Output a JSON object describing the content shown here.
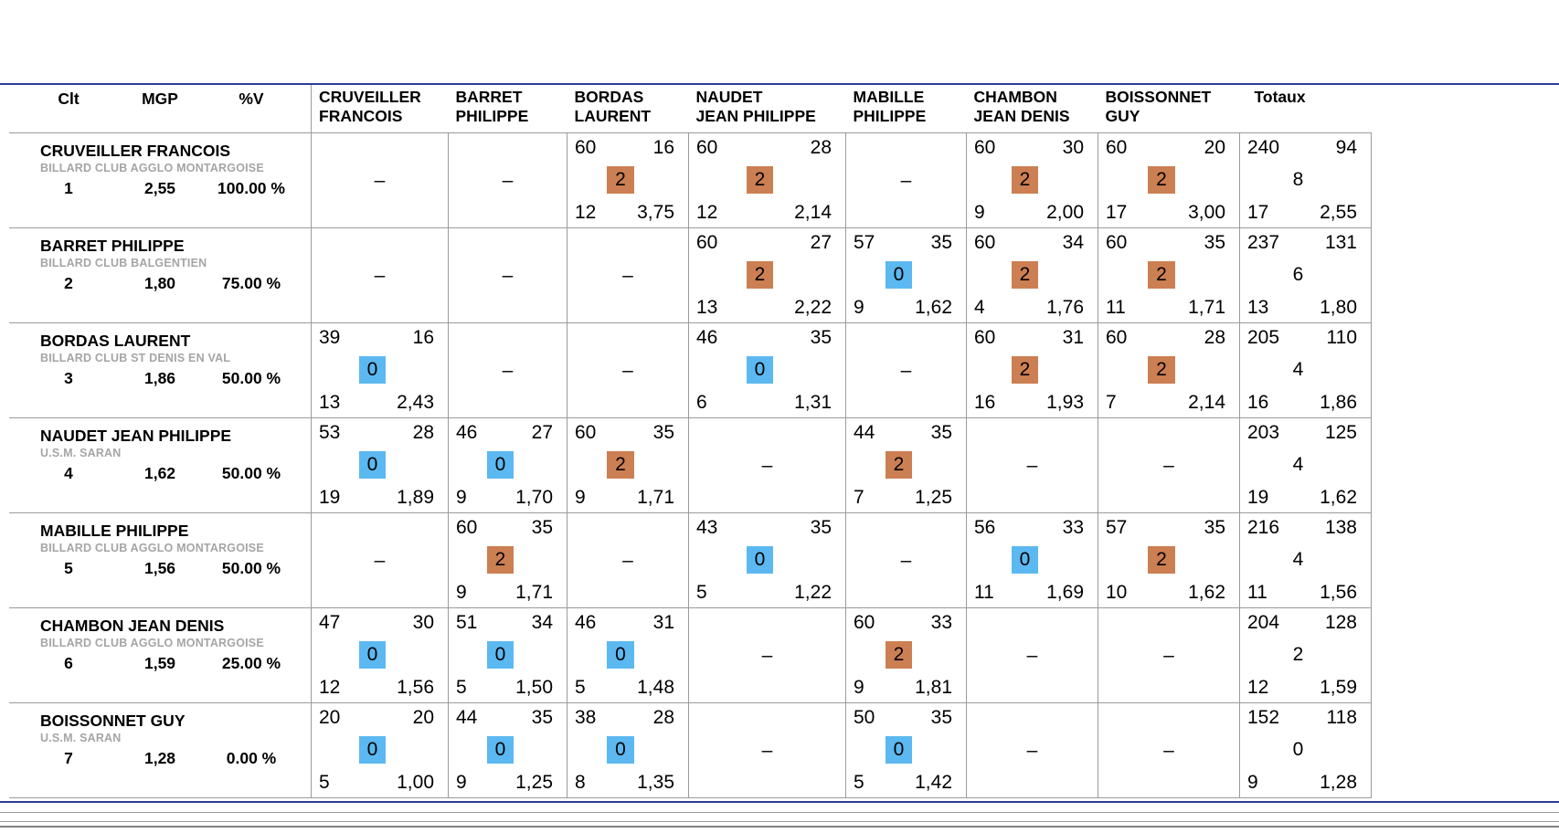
{
  "colors": {
    "accent_line": "#2e3b94",
    "win_badge": "#cc7f52",
    "loss_badge": "#5cb8f0",
    "club_text": "#a5a5a5",
    "grid_line": "#9b9b9b"
  },
  "table": {
    "stat_headers": [
      "Clt",
      "MGP",
      "%V"
    ],
    "totals_header": "Totaux",
    "no_match_symbol": "–",
    "opponents": [
      {
        "line1": "CRUVEILLER",
        "line2": "FRANCOIS"
      },
      {
        "line1": "BARRET",
        "line2": "PHILIPPE"
      },
      {
        "line1": "BORDAS",
        "line2": "LAURENT"
      },
      {
        "line1": "NAUDET",
        "line2": "JEAN PHILIPPE"
      },
      {
        "line1": "MABILLE",
        "line2": "PHILIPPE"
      },
      {
        "line1": "CHAMBON",
        "line2": "JEAN DENIS"
      },
      {
        "line1": "BOISSONNET",
        "line2": "GUY"
      }
    ],
    "rows": [
      {
        "name": "CRUVEILLER FRANCOIS",
        "club": "BILLARD CLUB AGGLO MONTARGOISE",
        "rank": "1",
        "mgp": "2,55",
        "pct_v": "100.00 %",
        "matches": [
          null,
          null,
          {
            "points": "60",
            "serie": "16",
            "match_pts": "2",
            "innings": "12",
            "average": "3,75"
          },
          {
            "points": "60",
            "serie": "28",
            "match_pts": "2",
            "innings": "12",
            "average": "2,14"
          },
          null,
          {
            "points": "60",
            "serie": "30",
            "match_pts": "2",
            "innings": "9",
            "average": "2,00"
          },
          {
            "points": "60",
            "serie": "20",
            "match_pts": "2",
            "innings": "17",
            "average": "3,00"
          }
        ],
        "totals": {
          "points": "240",
          "serie": "94",
          "match_pts": "8",
          "innings": "17",
          "average": "2,55"
        }
      },
      {
        "name": "BARRET PHILIPPE",
        "club": "BILLARD CLUB BALGENTIEN",
        "rank": "2",
        "mgp": "1,80",
        "pct_v": "75.00 %",
        "matches": [
          null,
          null,
          null,
          {
            "points": "60",
            "serie": "27",
            "match_pts": "2",
            "innings": "13",
            "average": "2,22"
          },
          {
            "points": "57",
            "serie": "35",
            "match_pts": "0",
            "innings": "9",
            "average": "1,62"
          },
          {
            "points": "60",
            "serie": "34",
            "match_pts": "2",
            "innings": "4",
            "average": "1,76"
          },
          {
            "points": "60",
            "serie": "35",
            "match_pts": "2",
            "innings": "11",
            "average": "1,71"
          }
        ],
        "totals": {
          "points": "237",
          "serie": "131",
          "match_pts": "6",
          "innings": "13",
          "average": "1,80"
        }
      },
      {
        "name": "BORDAS LAURENT",
        "club": "BILLARD CLUB ST DENIS EN VAL",
        "rank": "3",
        "mgp": "1,86",
        "pct_v": "50.00 %",
        "matches": [
          {
            "points": "39",
            "serie": "16",
            "match_pts": "0",
            "innings": "13",
            "average": "2,43"
          },
          null,
          null,
          {
            "points": "46",
            "serie": "35",
            "match_pts": "0",
            "innings": "6",
            "average": "1,31"
          },
          null,
          {
            "points": "60",
            "serie": "31",
            "match_pts": "2",
            "innings": "16",
            "average": "1,93"
          },
          {
            "points": "60",
            "serie": "28",
            "match_pts": "2",
            "innings": "7",
            "average": "2,14"
          }
        ],
        "totals": {
          "points": "205",
          "serie": "110",
          "match_pts": "4",
          "innings": "16",
          "average": "1,86"
        }
      },
      {
        "name": "NAUDET JEAN PHILIPPE",
        "club": "U.S.M. SARAN",
        "rank": "4",
        "mgp": "1,62",
        "pct_v": "50.00 %",
        "matches": [
          {
            "points": "53",
            "serie": "28",
            "match_pts": "0",
            "innings": "19",
            "average": "1,89"
          },
          {
            "points": "46",
            "serie": "27",
            "match_pts": "0",
            "innings": "9",
            "average": "1,70"
          },
          {
            "points": "60",
            "serie": "35",
            "match_pts": "2",
            "innings": "9",
            "average": "1,71"
          },
          null,
          {
            "points": "44",
            "serie": "35",
            "match_pts": "2",
            "innings": "7",
            "average": "1,25"
          },
          null,
          null
        ],
        "totals": {
          "points": "203",
          "serie": "125",
          "match_pts": "4",
          "innings": "19",
          "average": "1,62"
        }
      },
      {
        "name": "MABILLE PHILIPPE",
        "club": "BILLARD CLUB AGGLO MONTARGOISE",
        "rank": "5",
        "mgp": "1,56",
        "pct_v": "50.00 %",
        "matches": [
          null,
          {
            "points": "60",
            "serie": "35",
            "match_pts": "2",
            "innings": "9",
            "average": "1,71"
          },
          null,
          {
            "points": "43",
            "serie": "35",
            "match_pts": "0",
            "innings": "5",
            "average": "1,22"
          },
          null,
          {
            "points": "56",
            "serie": "33",
            "match_pts": "0",
            "innings": "11",
            "average": "1,69"
          },
          {
            "points": "57",
            "serie": "35",
            "match_pts": "2",
            "innings": "10",
            "average": "1,62"
          }
        ],
        "totals": {
          "points": "216",
          "serie": "138",
          "match_pts": "4",
          "innings": "11",
          "average": "1,56"
        }
      },
      {
        "name": "CHAMBON JEAN DENIS",
        "club": "BILLARD CLUB AGGLO MONTARGOISE",
        "rank": "6",
        "mgp": "1,59",
        "pct_v": "25.00 %",
        "matches": [
          {
            "points": "47",
            "serie": "30",
            "match_pts": "0",
            "innings": "12",
            "average": "1,56"
          },
          {
            "points": "51",
            "serie": "34",
            "match_pts": "0",
            "innings": "5",
            "average": "1,50"
          },
          {
            "points": "46",
            "serie": "31",
            "match_pts": "0",
            "innings": "5",
            "average": "1,48"
          },
          null,
          {
            "points": "60",
            "serie": "33",
            "match_pts": "2",
            "innings": "9",
            "average": "1,81"
          },
          null,
          null
        ],
        "totals": {
          "points": "204",
          "serie": "128",
          "match_pts": "2",
          "innings": "12",
          "average": "1,59"
        }
      },
      {
        "name": "BOISSONNET GUY",
        "club": "U.S.M. SARAN",
        "rank": "7",
        "mgp": "1,28",
        "pct_v": "0.00 %",
        "matches": [
          {
            "points": "20",
            "serie": "20",
            "match_pts": "0",
            "innings": "5",
            "average": "1,00"
          },
          {
            "points": "44",
            "serie": "35",
            "match_pts": "0",
            "innings": "9",
            "average": "1,25"
          },
          {
            "points": "38",
            "serie": "28",
            "match_pts": "0",
            "innings": "8",
            "average": "1,35"
          },
          null,
          {
            "points": "50",
            "serie": "35",
            "match_pts": "0",
            "innings": "5",
            "average": "1,42"
          },
          null,
          null
        ],
        "totals": {
          "points": "152",
          "serie": "118",
          "match_pts": "0",
          "innings": "9",
          "average": "1,28"
        }
      }
    ]
  }
}
